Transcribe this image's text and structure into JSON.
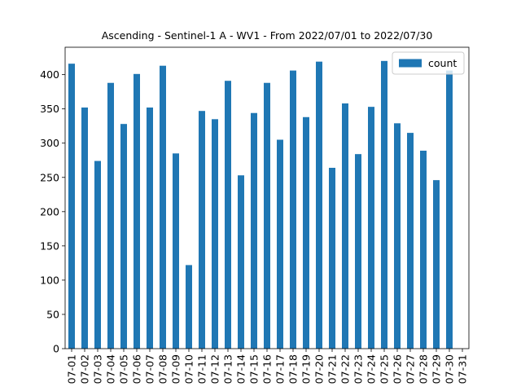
{
  "chart_data": {
    "type": "bar",
    "title": "Ascending - Sentinel-1 A - WV1 - From 2022/07/01 to 2022/07/30",
    "xlabel": "",
    "ylabel": "",
    "categories": [
      "07-01",
      "07-02",
      "07-03",
      "07-04",
      "07-05",
      "07-06",
      "07-07",
      "07-08",
      "07-09",
      "07-10",
      "07-11",
      "07-12",
      "07-13",
      "07-14",
      "07-15",
      "07-16",
      "07-17",
      "07-18",
      "07-19",
      "07-20",
      "07-21",
      "07-22",
      "07-23",
      "07-24",
      "07-25",
      "07-26",
      "07-27",
      "07-28",
      "07-29",
      "07-30",
      "07-31"
    ],
    "series": [
      {
        "name": "count",
        "color": "#1f77b4",
        "values": [
          416,
          352,
          274,
          388,
          328,
          401,
          352,
          413,
          285,
          122,
          347,
          335,
          391,
          253,
          344,
          388,
          305,
          406,
          338,
          419,
          264,
          358,
          284,
          353,
          420,
          329,
          315,
          289,
          246,
          406,
          0
        ]
      }
    ],
    "ylim": [
      0,
      440
    ],
    "yticks": [
      0,
      50,
      100,
      150,
      200,
      250,
      300,
      350,
      400
    ],
    "grid": false,
    "legend_position": "top-right"
  }
}
